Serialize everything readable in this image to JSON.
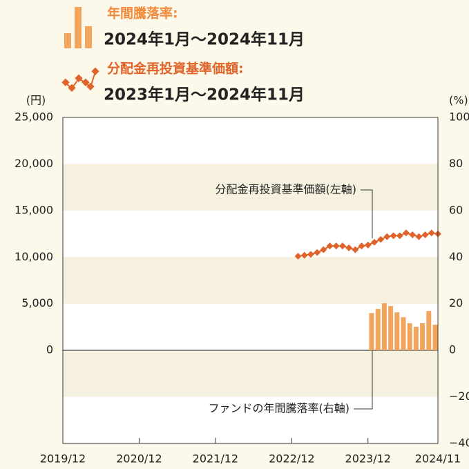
{
  "chart_data": {
    "type": "bar_line",
    "legend": [
      {
        "title": "年間騰落率:",
        "period": "2024年1月〜2024年11月"
      },
      {
        "title": "分配金再投資基準価額:",
        "period": "2023年1月〜2024年11月"
      }
    ],
    "ylabel": "(円)",
    "y2label": "(%)",
    "xlim": [
      "2019/12",
      "2024/11"
    ],
    "xticks": [
      "2019/12",
      "2020/12",
      "2021/12",
      "2022/12",
      "2023/12",
      "2024/11"
    ],
    "ylim": [
      -10000,
      25000
    ],
    "yticks": [
      0,
      {
        "value": 5000,
        "label": "5,000"
      },
      {
        "value": 10000,
        "label": "10,000"
      },
      {
        "value": 15000,
        "label": "15,000"
      },
      {
        "value": 20000,
        "label": "20,000"
      },
      {
        "value": 25000,
        "label": "25,000"
      }
    ],
    "y2lim": [
      -40,
      100
    ],
    "y2ticks": [
      {
        "value": -40,
        "label": "−40"
      },
      {
        "value": -20,
        "label": "−20"
      },
      0,
      20,
      40,
      60,
      80,
      100
    ],
    "grid": true,
    "series": [
      {
        "name": "分配金再投資基準価額(左軸)",
        "type": "line",
        "color": "#e0632a",
        "x": [
          "2023/01",
          "2023/02",
          "2023/03",
          "2023/04",
          "2023/05",
          "2023/06",
          "2023/07",
          "2023/08",
          "2023/09",
          "2023/10",
          "2023/11",
          "2023/12",
          "2024/01",
          "2024/02",
          "2024/03",
          "2024/04",
          "2024/05",
          "2024/06",
          "2024/07",
          "2024/08",
          "2024/09",
          "2024/10",
          "2024/11"
        ],
        "values": [
          10100,
          10200,
          10300,
          10500,
          10800,
          11200,
          11200,
          11200,
          11000,
          10800,
          11200,
          11300,
          11600,
          11900,
          12200,
          12300,
          12300,
          12600,
          12400,
          12200,
          12400,
          12600,
          12500
        ]
      },
      {
        "name": "ファンドの年間騰落率(右軸)",
        "type": "bar",
        "axis": "y2",
        "color": "#f2a55c",
        "x": [
          "2024/01",
          "2024/02",
          "2024/03",
          "2024/04",
          "2024/05",
          "2024/06",
          "2024/07",
          "2024/08",
          "2024/09",
          "2024/10",
          "2024/11"
        ],
        "values": [
          16.0,
          17.8,
          20.2,
          19.0,
          16.3,
          14.2,
          11.6,
          10.1,
          11.6,
          16.9,
          11.0
        ]
      }
    ]
  }
}
